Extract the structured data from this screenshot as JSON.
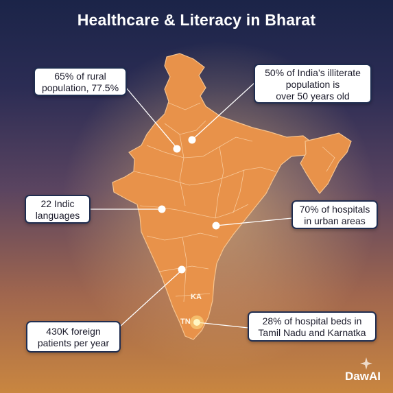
{
  "title": "Healthcare & Literacy in Bharat",
  "callouts": {
    "rural": {
      "lines": [
        "65% of rural",
        "population, 77.5%"
      ]
    },
    "illiterate": {
      "lines": [
        "50% of India’s illiterate",
        "population is",
        "over 50 years old"
      ]
    },
    "languages": {
      "lines": [
        "22 Indic",
        "languages"
      ]
    },
    "hospitals_urban": {
      "lines": [
        "70% of hospitals",
        "in urban areas"
      ]
    },
    "foreign_patients": {
      "lines": [
        "430K foreign",
        "patients per year"
      ]
    },
    "hospital_beds": {
      "lines": [
        "28% of hospital beds in",
        "Tamil Nadu and Karnatka"
      ]
    }
  },
  "state_labels": {
    "ka": "KA",
    "tn": "TN"
  },
  "logo": "DawAI",
  "colors": {
    "map_fill": "#e8924a",
    "map_border": "#f7c48e",
    "callout_border": "#1f2d50"
  }
}
